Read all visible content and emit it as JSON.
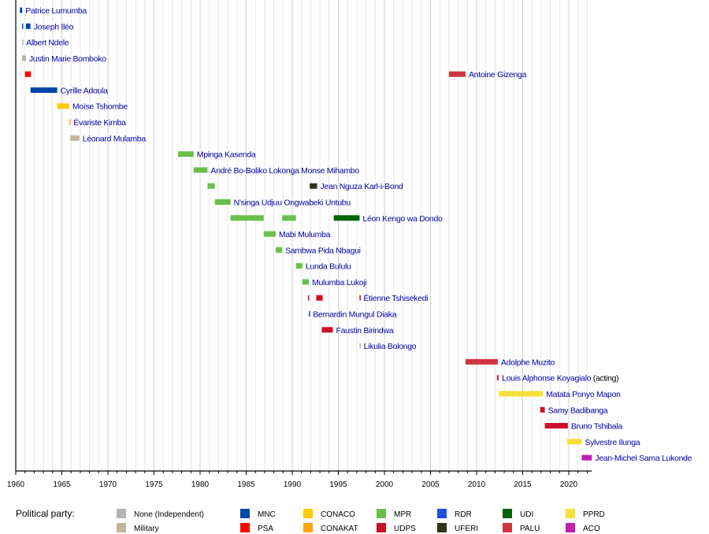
{
  "chart_data": {
    "type": "timeline",
    "title": "",
    "xlim": [
      1960,
      2022.5
    ],
    "xticks": [
      1960,
      1965,
      1970,
      1975,
      1980,
      1985,
      1990,
      1995,
      2000,
      2005,
      2010,
      2015,
      2020
    ],
    "grid": "vertical, yearly",
    "legend_title": "Political party:",
    "legend_placement": "bottom",
    "parties": [
      {
        "key": "none",
        "name": "None (Independent)",
        "color": "#b3b3b3"
      },
      {
        "key": "military",
        "name": "Military",
        "color": "#c2b59b"
      },
      {
        "key": "mnc",
        "name": "MNC",
        "color": "#0047ab"
      },
      {
        "key": "psa",
        "name": "PSA",
        "color": "#ff0000"
      },
      {
        "key": "conaco",
        "name": "CONACO",
        "color": "#ffcc00"
      },
      {
        "key": "conakat",
        "name": "CONAKAT",
        "color": "#ffa500"
      },
      {
        "key": "mpr",
        "name": "MPR",
        "color": "#6abf4b"
      },
      {
        "key": "udps",
        "name": "UDPS",
        "color": "#cc1028"
      },
      {
        "key": "rdr",
        "name": "RDR",
        "color": "#1f4ee0"
      },
      {
        "key": "uferi",
        "name": "UFERI",
        "color": "#2e3320"
      },
      {
        "key": "udi",
        "name": "UDI",
        "color": "#006400"
      },
      {
        "key": "palu",
        "name": "PALU",
        "color": "#d0343f"
      },
      {
        "key": "pprd",
        "name": "PPRD",
        "color": "#f5e03a"
      },
      {
        "key": "aco",
        "name": "ACO",
        "color": "#c020b0"
      }
    ],
    "rows": [
      {
        "name": "Patrice Lumumba",
        "terms": [
          {
            "start": 1960.45,
            "end": 1960.7,
            "party": "mnc"
          }
        ]
      },
      {
        "name": "Joseph Iléo",
        "terms": [
          {
            "start": 1960.68,
            "end": 1960.8,
            "party": "mnc"
          },
          {
            "start": 1961.1,
            "end": 1961.6,
            "party": "mnc"
          }
        ]
      },
      {
        "name": "Albert Ndele",
        "terms": [
          {
            "start": 1960.7,
            "end": 1960.78,
            "party": "none"
          }
        ]
      },
      {
        "name": "Justin Marie Bomboko",
        "terms": [
          {
            "start": 1960.7,
            "end": 1961.1,
            "party": "none"
          }
        ]
      },
      {
        "name": "Antoine Gizenga",
        "terms": [
          {
            "start": 1961.0,
            "end": 1961.65,
            "party": "psa"
          },
          {
            "start": 2007.0,
            "end": 2008.8,
            "party": "palu"
          }
        ]
      },
      {
        "name": "Cyrille Adoula",
        "terms": [
          {
            "start": 1961.6,
            "end": 1964.5,
            "party": "mnc"
          }
        ]
      },
      {
        "name": "Moïse Tshombe",
        "terms": [
          {
            "start": 1964.5,
            "end": 1965.8,
            "party": "conaco"
          }
        ]
      },
      {
        "name": "Évariste Kimba",
        "terms": [
          {
            "start": 1965.8,
            "end": 1965.92,
            "party": "conakat"
          }
        ]
      },
      {
        "name": "Léonard Mulamba",
        "terms": [
          {
            "start": 1965.92,
            "end": 1966.9,
            "party": "military"
          }
        ]
      },
      {
        "name": "Mpinga Kasenda",
        "terms": [
          {
            "start": 1977.6,
            "end": 1979.3,
            "party": "mpr"
          }
        ]
      },
      {
        "name": "André Bo-Boliko Lokonga Monse Mihambo",
        "terms": [
          {
            "start": 1979.3,
            "end": 1980.8,
            "party": "mpr"
          }
        ]
      },
      {
        "name": "Jean Nguza Karl-i-Bond",
        "terms": [
          {
            "start": 1980.8,
            "end": 1981.6,
            "party": "mpr"
          },
          {
            "start": 1991.9,
            "end": 1992.7,
            "party": "uferi"
          }
        ]
      },
      {
        "name": "N'singa Udjuu Ongwabeki Untubu",
        "terms": [
          {
            "start": 1981.6,
            "end": 1983.3,
            "party": "mpr"
          }
        ]
      },
      {
        "name": "Léon Kengo wa Dondo",
        "terms": [
          {
            "start": 1983.3,
            "end": 1986.9,
            "party": "mpr"
          },
          {
            "start": 1988.9,
            "end": 1990.4,
            "party": "mpr"
          },
          {
            "start": 1994.5,
            "end": 1997.3,
            "party": "udi"
          }
        ]
      },
      {
        "name": "Mabi Mulumba",
        "terms": [
          {
            "start": 1986.9,
            "end": 1988.2,
            "party": "mpr"
          }
        ]
      },
      {
        "name": "Sambwa Pida Nbagui",
        "terms": [
          {
            "start": 1988.2,
            "end": 1988.9,
            "party": "mpr"
          }
        ]
      },
      {
        "name": "Lunda Bululu",
        "terms": [
          {
            "start": 1990.4,
            "end": 1991.1,
            "party": "mpr"
          }
        ]
      },
      {
        "name": "Mulumba Lukoji",
        "terms": [
          {
            "start": 1991.1,
            "end": 1991.8,
            "party": "mpr"
          }
        ]
      },
      {
        "name": "Étienne Tshisekedi",
        "terms": [
          {
            "start": 1991.7,
            "end": 1991.8,
            "party": "udps"
          },
          {
            "start": 1992.6,
            "end": 1993.3,
            "party": "udps"
          },
          {
            "start": 1997.3,
            "end": 1997.38,
            "party": "udps"
          }
        ]
      },
      {
        "name": "Bernardin Mungul Diaka",
        "terms": [
          {
            "start": 1991.8,
            "end": 1991.9,
            "party": "rdr"
          }
        ]
      },
      {
        "name": "Faustin Birindwa",
        "terms": [
          {
            "start": 1993.2,
            "end": 1994.4,
            "party": "udps"
          }
        ]
      },
      {
        "name": "Likulia Bolongo",
        "terms": [
          {
            "start": 1997.3,
            "end": 1997.4,
            "party": "military"
          }
        ]
      },
      {
        "name": "Adolphe Muzito",
        "terms": [
          {
            "start": 2008.8,
            "end": 2012.3,
            "party": "palu"
          }
        ]
      },
      {
        "name": "Louis Alphonse Koyagialo",
        "note": " (acting)",
        "terms": [
          {
            "start": 2012.2,
            "end": 2012.4,
            "party": "palu"
          }
        ]
      },
      {
        "name": "Matata Ponyo Mapon",
        "terms": [
          {
            "start": 2012.4,
            "end": 2017.2,
            "party": "pprd"
          }
        ]
      },
      {
        "name": "Samy Badibanga",
        "terms": [
          {
            "start": 2016.9,
            "end": 2017.4,
            "party": "udps"
          }
        ]
      },
      {
        "name": "Bruno Tshibala",
        "terms": [
          {
            "start": 2017.4,
            "end": 2019.9,
            "party": "udps"
          }
        ]
      },
      {
        "name": "Sylvestre Ilunga",
        "terms": [
          {
            "start": 2019.8,
            "end": 2021.4,
            "party": "pprd"
          }
        ]
      },
      {
        "name": "Jean-Michel Sama Lukonde",
        "terms": [
          {
            "start": 2021.4,
            "end": 2022.5,
            "party": "aco"
          }
        ]
      }
    ]
  }
}
